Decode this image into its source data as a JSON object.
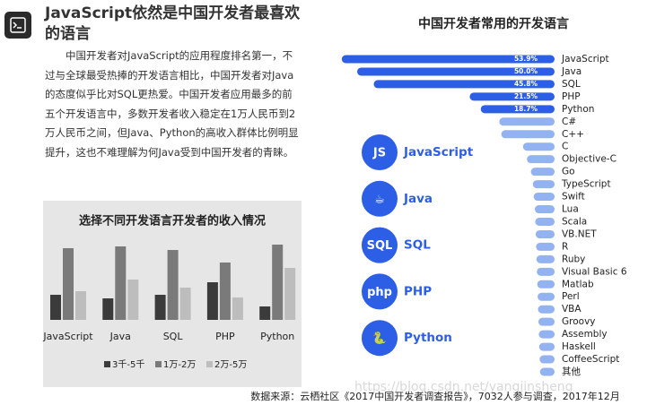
{
  "header": {
    "title": "JavaScript依然是中国开发者最喜欢的语言",
    "paragraph": "中国开发者对JavaScript的应用程度排名第一，不过与全球最受热捧的开发语言相比，中国开发者对Java的态度似乎比对SQL更热爱。中国开发者应用最多的前五个开发语言中，多数开发者收入稳定在1万人民币到2万人民币之间，但Java、Python的高收入群体比例明显提升，这也不难理解为何Java受到中国开发者的青睐。"
  },
  "chart_data": [
    {
      "type": "bar",
      "title": "选择不同开发语言开发者的收入情况",
      "categories": [
        "JavaScript",
        "Java",
        "SQL",
        "PHP",
        "Python"
      ],
      "series": [
        {
          "name": "3千-5千",
          "color": "#3b3b3b",
          "values": [
            28,
            24,
            28,
            42,
            15
          ]
        },
        {
          "name": "1万-2万",
          "color": "#7a7a7a",
          "values": [
            80,
            82,
            78,
            64,
            84
          ]
        },
        {
          "name": "2万-5万",
          "color": "#bdbdbd",
          "values": [
            32,
            45,
            36,
            25,
            58
          ]
        }
      ],
      "ylim": [
        0,
        100
      ],
      "legend": "bottom"
    },
    {
      "type": "hbar",
      "title": "中国开发者常用的开发语言",
      "categories": [
        "JavaScript",
        "Java",
        "SQL",
        "PHP",
        "Python",
        "C#",
        "C++",
        "C",
        "Objective-C",
        "Go",
        "TypeScript",
        "Swift",
        "Lua",
        "Scala",
        "VB.NET",
        "R",
        "Ruby",
        "Visual Basic 6",
        "Matlab",
        "Perl",
        "VBA",
        "Groovy",
        "Assembly",
        "Haskell",
        "CoffeeScript",
        "其他"
      ],
      "values": [
        53.9,
        50.0,
        45.8,
        21.5,
        18.7,
        14,
        13.5,
        8,
        7,
        6,
        5.5,
        5.3,
        5,
        4.9,
        4.8,
        4.7,
        4.6,
        4.5,
        4.4,
        4.3,
        4.2,
        4.1,
        4,
        3.9,
        3.8,
        3.7
      ],
      "value_labels": [
        "53.9%",
        "50.0%",
        "45.8%",
        "21.5%",
        "18.7%",
        null,
        null,
        null,
        null,
        null,
        null,
        null,
        null,
        null,
        null,
        null,
        null,
        null,
        null,
        null,
        null,
        null,
        null,
        null,
        null,
        null
      ],
      "colors": [
        "#2d5ee6",
        "#2d5ee6",
        "#2d5ee6",
        "#2d5ee6",
        "#2d5ee6",
        "#93b2f2",
        "#93b2f2",
        "#93b2f2",
        "#93b2f2",
        "#93b2f2",
        "#93b2f2",
        "#93b2f2",
        "#93b2f2",
        "#93b2f2",
        "#93b2f2",
        "#93b2f2",
        "#93b2f2",
        "#93b2f2",
        "#93b2f2",
        "#93b2f2",
        "#93b2f2",
        "#93b2f2",
        "#93b2f2",
        "#93b2f2",
        "#93b2f2",
        "#93b2f2"
      ],
      "highlights": [
        {
          "icon": "JS",
          "label": "JavaScript"
        },
        {
          "icon": "☕",
          "label": "Java"
        },
        {
          "icon": "SQL",
          "label": "SQL"
        },
        {
          "icon": "php",
          "label": "PHP"
        },
        {
          "icon": "🐍",
          "label": "Python"
        }
      ]
    }
  ],
  "footer": {
    "source": "数据来源：云栖社区《2017中国开发者调查报告》，7032人参与调查，2017年12月",
    "watermark": "https://blog.csdn.net/yangjinsheng"
  }
}
